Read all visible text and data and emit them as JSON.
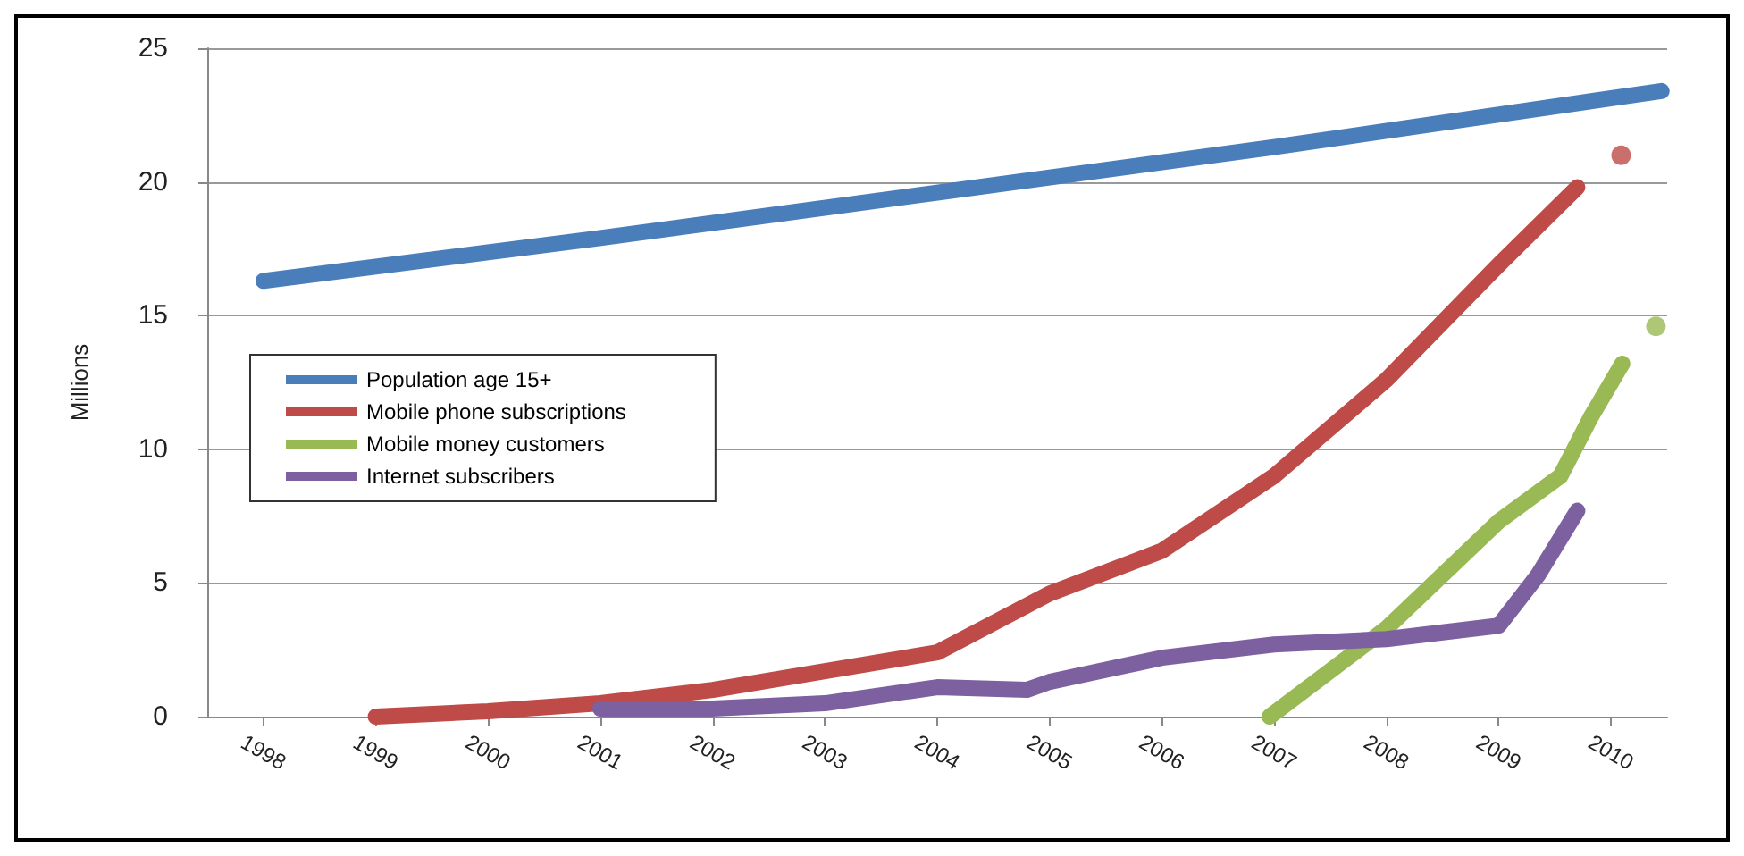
{
  "chart_data": {
    "type": "line",
    "ylabel": "Millions",
    "xlim": [
      1997.5,
      2010.5
    ],
    "xticks": [
      1998,
      1999,
      2000,
      2001,
      2002,
      2003,
      2004,
      2005,
      2006,
      2007,
      2008,
      2009,
      2010
    ],
    "ylim": [
      0,
      25
    ],
    "yticks": [
      0,
      5,
      10,
      15,
      20,
      25
    ],
    "grid": "y",
    "legend": "left",
    "marker": "none",
    "line_style": "solid",
    "series": [
      {
        "name": "Population age 15+",
        "color": "#4a7ebb",
        "x": [
          1998,
          2001,
          2004,
          2007,
          2010.45
        ],
        "values": [
          16.3,
          17.9,
          19.6,
          21.3,
          23.4
        ]
      },
      {
        "name": "Mobile phone subscriptions",
        "color": "#be4b48",
        "x": [
          1999,
          2000,
          2001,
          2002,
          2003,
          2004,
          2005,
          2006,
          2007,
          2008,
          2009,
          2009.7
        ],
        "values": [
          0,
          0.2,
          0.5,
          1.0,
          1.7,
          2.4,
          4.6,
          6.2,
          9.0,
          12.6,
          16.9,
          19.8
        ]
      },
      {
        "name": "Mobile money customers",
        "color": "#98b954",
        "x": [
          2006.96,
          2008,
          2009,
          2009.55,
          2009.82,
          2010.1
        ],
        "values": [
          0,
          3.3,
          7.3,
          9.0,
          11.2,
          13.2
        ]
      },
      {
        "name": "Internet subscribers",
        "color": "#7d60a0",
        "x": [
          2001,
          2002,
          2003,
          2004,
          2004.8,
          2005,
          2006,
          2007,
          2008,
          2009,
          2009.35,
          2009.7
        ],
        "values": [
          0.3,
          0.3,
          0.5,
          1.1,
          1.0,
          1.3,
          2.2,
          2.7,
          2.9,
          3.4,
          5.3,
          7.7
        ]
      },
      {
        "type": "scatter",
        "marker": "circle",
        "color": "#be4b48",
        "x": [
          2010.09
        ],
        "values": [
          21.0
        ]
      },
      {
        "type": "scatter",
        "marker": "circle",
        "color": "#98b954",
        "x": [
          2010.4
        ],
        "values": [
          14.6
        ]
      }
    ]
  }
}
